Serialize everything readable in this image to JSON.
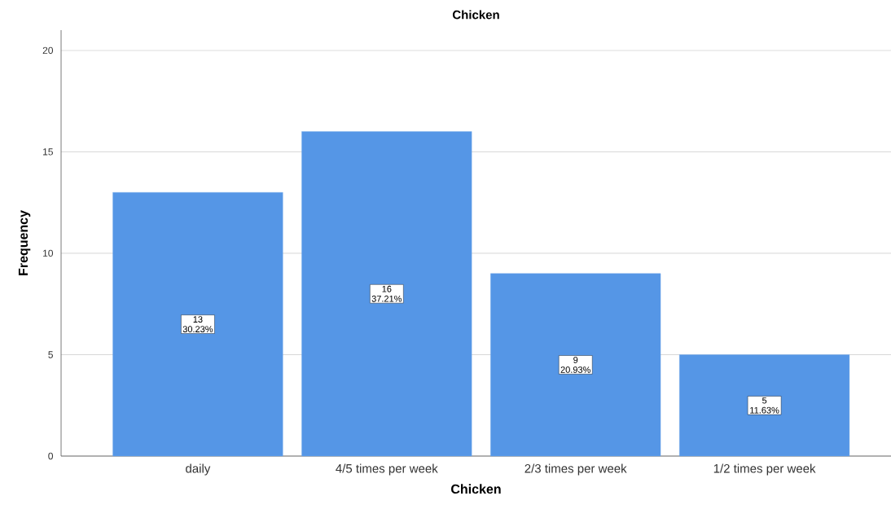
{
  "chart_data": {
    "type": "bar",
    "title": "Chicken",
    "xlabel": "Chicken",
    "ylabel": "Frequency",
    "categories": [
      "daily",
      "4/5 times per week",
      "2/3 times per week",
      "1/2 times per week"
    ],
    "values": [
      13,
      16,
      9,
      5
    ],
    "color": "#5596e6",
    "value_labels": [
      "13 30.23%",
      "16 37.21%",
      "9 20.93%",
      "5 11.63%"
    ],
    "ylim": [
      0,
      21
    ],
    "yticks": [
      0,
      5,
      10,
      15,
      20
    ],
    "grid": "y"
  }
}
